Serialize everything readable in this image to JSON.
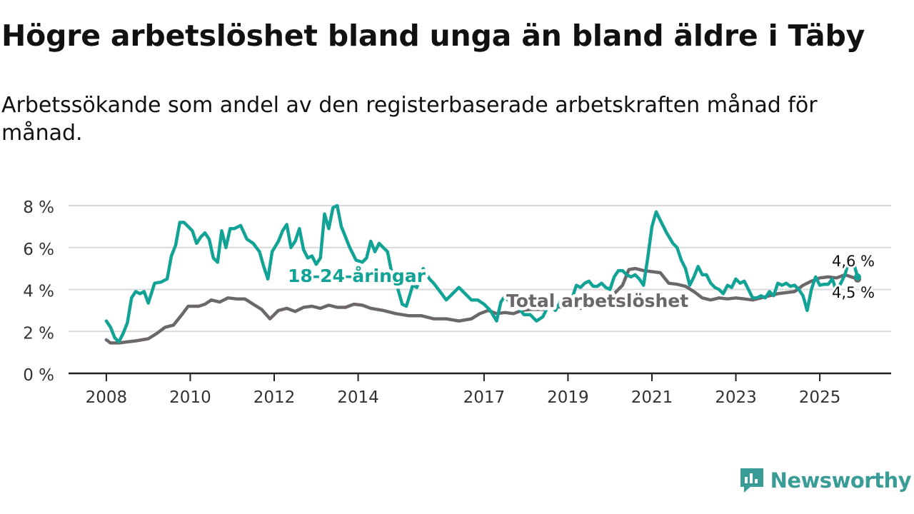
{
  "title": "Högre arbetslöshet bland unga än bland äldre i Täby",
  "subtitle": "Arbetssökande som andel av den registerbaserade arbetskraften månad för månad.",
  "brand": {
    "name": "Newsworthy",
    "icon": "newsworthy-logo-icon",
    "color": "#3a9c96"
  },
  "chart_data": {
    "type": "line",
    "title": "Högre arbetslöshet bland unga än bland äldre i Täby",
    "xlabel": "",
    "ylabel": "",
    "ylim": [
      0,
      8
    ],
    "xlim": [
      2007.1,
      2026.7
    ],
    "yticks": [
      0,
      2,
      4,
      6,
      8
    ],
    "ytick_labels": [
      "0 %",
      "2 %",
      "4 %",
      "6 %",
      "8 %"
    ],
    "xticks": [
      2008,
      2010,
      2012,
      2014,
      2017,
      2019,
      2021,
      2023,
      2025
    ],
    "xtick_labels": [
      "2008",
      "2010",
      "2012",
      "2014",
      "2017",
      "2019",
      "2021",
      "2023",
      "2025"
    ],
    "grid": true,
    "series": [
      {
        "name": "Total arbetslöshet",
        "color": "#6b676b",
        "label": "Total arbetslöshet",
        "end_label": "4,5 %",
        "points": [
          [
            2008.0,
            1.6
          ],
          [
            2008.1,
            1.45
          ],
          [
            2008.3,
            1.45
          ],
          [
            2008.5,
            1.5
          ],
          [
            2008.7,
            1.55
          ],
          [
            2009.0,
            1.65
          ],
          [
            2009.2,
            1.9
          ],
          [
            2009.4,
            2.2
          ],
          [
            2009.6,
            2.3
          ],
          [
            2009.8,
            2.8
          ],
          [
            2009.95,
            3.2
          ],
          [
            2010.2,
            3.2
          ],
          [
            2010.35,
            3.3
          ],
          [
            2010.5,
            3.5
          ],
          [
            2010.7,
            3.4
          ],
          [
            2010.9,
            3.6
          ],
          [
            2011.1,
            3.55
          ],
          [
            2011.3,
            3.55
          ],
          [
            2011.5,
            3.3
          ],
          [
            2011.7,
            3.05
          ],
          [
            2011.9,
            2.6
          ],
          [
            2012.1,
            3.0
          ],
          [
            2012.3,
            3.1
          ],
          [
            2012.5,
            2.95
          ],
          [
            2012.7,
            3.15
          ],
          [
            2012.9,
            3.2
          ],
          [
            2013.1,
            3.1
          ],
          [
            2013.3,
            3.25
          ],
          [
            2013.5,
            3.15
          ],
          [
            2013.7,
            3.15
          ],
          [
            2013.9,
            3.3
          ],
          [
            2014.1,
            3.25
          ],
          [
            2014.3,
            3.1
          ],
          [
            2014.6,
            3.0
          ],
          [
            2014.9,
            2.85
          ],
          [
            2015.2,
            2.75
          ],
          [
            2015.5,
            2.75
          ],
          [
            2015.8,
            2.6
          ],
          [
            2016.1,
            2.6
          ],
          [
            2016.4,
            2.5
          ],
          [
            2016.7,
            2.6
          ],
          [
            2016.9,
            2.85
          ],
          [
            2017.1,
            3.0
          ],
          [
            2017.3,
            2.85
          ],
          [
            2017.5,
            2.9
          ],
          [
            2017.7,
            2.85
          ],
          [
            2017.9,
            3.0
          ],
          [
            2018.1,
            3.05
          ],
          [
            2018.4,
            3.05
          ],
          [
            2018.7,
            3.2
          ],
          [
            2019.0,
            3.1
          ],
          [
            2019.3,
            3.1
          ],
          [
            2019.6,
            3.25
          ],
          [
            2019.9,
            3.55
          ],
          [
            2020.1,
            3.8
          ],
          [
            2020.3,
            4.2
          ],
          [
            2020.45,
            4.95
          ],
          [
            2020.6,
            5.0
          ],
          [
            2020.8,
            4.9
          ],
          [
            2021.0,
            4.85
          ],
          [
            2021.2,
            4.8
          ],
          [
            2021.4,
            4.3
          ],
          [
            2021.6,
            4.25
          ],
          [
            2021.8,
            4.15
          ],
          [
            2022.0,
            3.9
          ],
          [
            2022.2,
            3.6
          ],
          [
            2022.4,
            3.5
          ],
          [
            2022.6,
            3.6
          ],
          [
            2022.8,
            3.55
          ],
          [
            2023.0,
            3.6
          ],
          [
            2023.2,
            3.55
          ],
          [
            2023.4,
            3.5
          ],
          [
            2023.6,
            3.6
          ],
          [
            2023.8,
            3.7
          ],
          [
            2024.0,
            3.8
          ],
          [
            2024.2,
            3.85
          ],
          [
            2024.4,
            3.9
          ],
          [
            2024.6,
            4.2
          ],
          [
            2024.8,
            4.4
          ],
          [
            2025.0,
            4.55
          ],
          [
            2025.2,
            4.6
          ],
          [
            2025.4,
            4.55
          ],
          [
            2025.6,
            4.7
          ],
          [
            2025.75,
            4.6
          ],
          [
            2025.9,
            4.5
          ]
        ]
      },
      {
        "name": "18-24-åringar",
        "color": "#12a396",
        "label": "18-24-åringar",
        "end_label": "4,6 %",
        "points": [
          [
            2008.0,
            2.5
          ],
          [
            2008.1,
            2.2
          ],
          [
            2008.2,
            1.7
          ],
          [
            2008.3,
            1.5
          ],
          [
            2008.4,
            1.9
          ],
          [
            2008.5,
            2.4
          ],
          [
            2008.6,
            3.6
          ],
          [
            2008.7,
            3.9
          ],
          [
            2008.8,
            3.8
          ],
          [
            2008.9,
            3.9
          ],
          [
            2009.0,
            3.35
          ],
          [
            2009.15,
            4.3
          ],
          [
            2009.3,
            4.35
          ],
          [
            2009.45,
            4.5
          ],
          [
            2009.55,
            5.6
          ],
          [
            2009.65,
            6.1
          ],
          [
            2009.75,
            7.2
          ],
          [
            2009.85,
            7.2
          ],
          [
            2009.95,
            7.0
          ],
          [
            2010.05,
            6.8
          ],
          [
            2010.15,
            6.2
          ],
          [
            2010.25,
            6.5
          ],
          [
            2010.35,
            6.7
          ],
          [
            2010.45,
            6.4
          ],
          [
            2010.55,
            5.5
          ],
          [
            2010.65,
            5.3
          ],
          [
            2010.75,
            6.8
          ],
          [
            2010.85,
            6.0
          ],
          [
            2010.95,
            6.9
          ],
          [
            2011.05,
            6.9
          ],
          [
            2011.2,
            7.05
          ],
          [
            2011.35,
            6.4
          ],
          [
            2011.5,
            6.2
          ],
          [
            2011.65,
            5.8
          ],
          [
            2011.75,
            5.1
          ],
          [
            2011.85,
            4.5
          ],
          [
            2011.95,
            5.8
          ],
          [
            2012.1,
            6.3
          ],
          [
            2012.2,
            6.8
          ],
          [
            2012.3,
            7.1
          ],
          [
            2012.4,
            6.0
          ],
          [
            2012.5,
            6.3
          ],
          [
            2012.6,
            6.9
          ],
          [
            2012.7,
            5.9
          ],
          [
            2012.8,
            5.5
          ],
          [
            2012.9,
            5.6
          ],
          [
            2013.0,
            5.2
          ],
          [
            2013.1,
            5.5
          ],
          [
            2013.2,
            7.6
          ],
          [
            2013.3,
            6.9
          ],
          [
            2013.4,
            7.9
          ],
          [
            2013.5,
            8.0
          ],
          [
            2013.6,
            7.0
          ],
          [
            2013.7,
            6.5
          ],
          [
            2013.8,
            6.0
          ],
          [
            2013.95,
            5.4
          ],
          [
            2014.1,
            5.3
          ],
          [
            2014.2,
            5.5
          ],
          [
            2014.3,
            6.3
          ],
          [
            2014.4,
            5.8
          ],
          [
            2014.5,
            6.2
          ],
          [
            2014.6,
            6.0
          ],
          [
            2014.7,
            5.8
          ],
          [
            2014.8,
            4.8
          ],
          [
            2014.95,
            4.0
          ],
          [
            2015.05,
            3.3
          ],
          [
            2015.15,
            3.2
          ],
          [
            2015.3,
            4.2
          ],
          [
            2015.4,
            4.1
          ],
          [
            2015.55,
            5.0
          ],
          [
            2015.7,
            4.5
          ],
          [
            2015.8,
            4.3
          ],
          [
            2015.95,
            3.9
          ],
          [
            2016.1,
            3.5
          ],
          [
            2016.25,
            3.8
          ],
          [
            2016.4,
            4.1
          ],
          [
            2016.55,
            3.8
          ],
          [
            2016.7,
            3.5
          ],
          [
            2016.85,
            3.5
          ],
          [
            2017.0,
            3.3
          ],
          [
            2017.15,
            3.0
          ],
          [
            2017.3,
            2.5
          ],
          [
            2017.4,
            3.4
          ],
          [
            2017.5,
            3.7
          ],
          [
            2017.6,
            3.4
          ],
          [
            2017.7,
            3.5
          ],
          [
            2017.8,
            3.2
          ],
          [
            2017.95,
            2.8
          ],
          [
            2018.1,
            2.8
          ],
          [
            2018.25,
            2.5
          ],
          [
            2018.4,
            2.7
          ],
          [
            2018.55,
            3.3
          ],
          [
            2018.7,
            3.0
          ],
          [
            2018.85,
            3.5
          ],
          [
            2019.0,
            3.4
          ],
          [
            2019.1,
            3.6
          ],
          [
            2019.2,
            4.2
          ],
          [
            2019.3,
            4.1
          ],
          [
            2019.4,
            4.3
          ],
          [
            2019.5,
            4.4
          ],
          [
            2019.6,
            4.15
          ],
          [
            2019.7,
            4.15
          ],
          [
            2019.8,
            4.3
          ],
          [
            2019.9,
            4.1
          ],
          [
            2020.0,
            4.0
          ],
          [
            2020.1,
            4.6
          ],
          [
            2020.2,
            4.9
          ],
          [
            2020.3,
            4.9
          ],
          [
            2020.4,
            4.7
          ],
          [
            2020.5,
            4.6
          ],
          [
            2020.6,
            4.7
          ],
          [
            2020.7,
            4.5
          ],
          [
            2020.8,
            4.2
          ],
          [
            2020.9,
            5.5
          ],
          [
            2021.0,
            7.0
          ],
          [
            2021.1,
            7.7
          ],
          [
            2021.2,
            7.3
          ],
          [
            2021.35,
            6.7
          ],
          [
            2021.5,
            6.2
          ],
          [
            2021.6,
            6.0
          ],
          [
            2021.7,
            5.4
          ],
          [
            2021.8,
            5.0
          ],
          [
            2021.9,
            4.2
          ],
          [
            2022.0,
            4.6
          ],
          [
            2022.1,
            5.1
          ],
          [
            2022.2,
            4.7
          ],
          [
            2022.3,
            4.7
          ],
          [
            2022.4,
            4.3
          ],
          [
            2022.5,
            4.1
          ],
          [
            2022.6,
            4.0
          ],
          [
            2022.7,
            3.8
          ],
          [
            2022.8,
            4.2
          ],
          [
            2022.9,
            4.1
          ],
          [
            2023.0,
            4.5
          ],
          [
            2023.1,
            4.3
          ],
          [
            2023.2,
            4.4
          ],
          [
            2023.3,
            4.0
          ],
          [
            2023.4,
            3.6
          ],
          [
            2023.5,
            3.6
          ],
          [
            2023.6,
            3.7
          ],
          [
            2023.7,
            3.6
          ],
          [
            2023.8,
            3.9
          ],
          [
            2023.9,
            3.7
          ],
          [
            2024.0,
            4.3
          ],
          [
            2024.1,
            4.2
          ],
          [
            2024.2,
            4.3
          ],
          [
            2024.3,
            4.15
          ],
          [
            2024.4,
            4.2
          ],
          [
            2024.5,
            4.0
          ],
          [
            2024.6,
            3.7
          ],
          [
            2024.7,
            3.0
          ],
          [
            2024.8,
            4.0
          ],
          [
            2024.9,
            4.6
          ],
          [
            2025.0,
            4.2
          ],
          [
            2025.1,
            4.25
          ],
          [
            2025.2,
            4.25
          ],
          [
            2025.3,
            4.5
          ],
          [
            2025.4,
            3.9
          ],
          [
            2025.5,
            4.3
          ],
          [
            2025.6,
            4.7
          ],
          [
            2025.7,
            5.4
          ],
          [
            2025.8,
            5.3
          ],
          [
            2025.9,
            4.6
          ]
        ]
      }
    ]
  }
}
